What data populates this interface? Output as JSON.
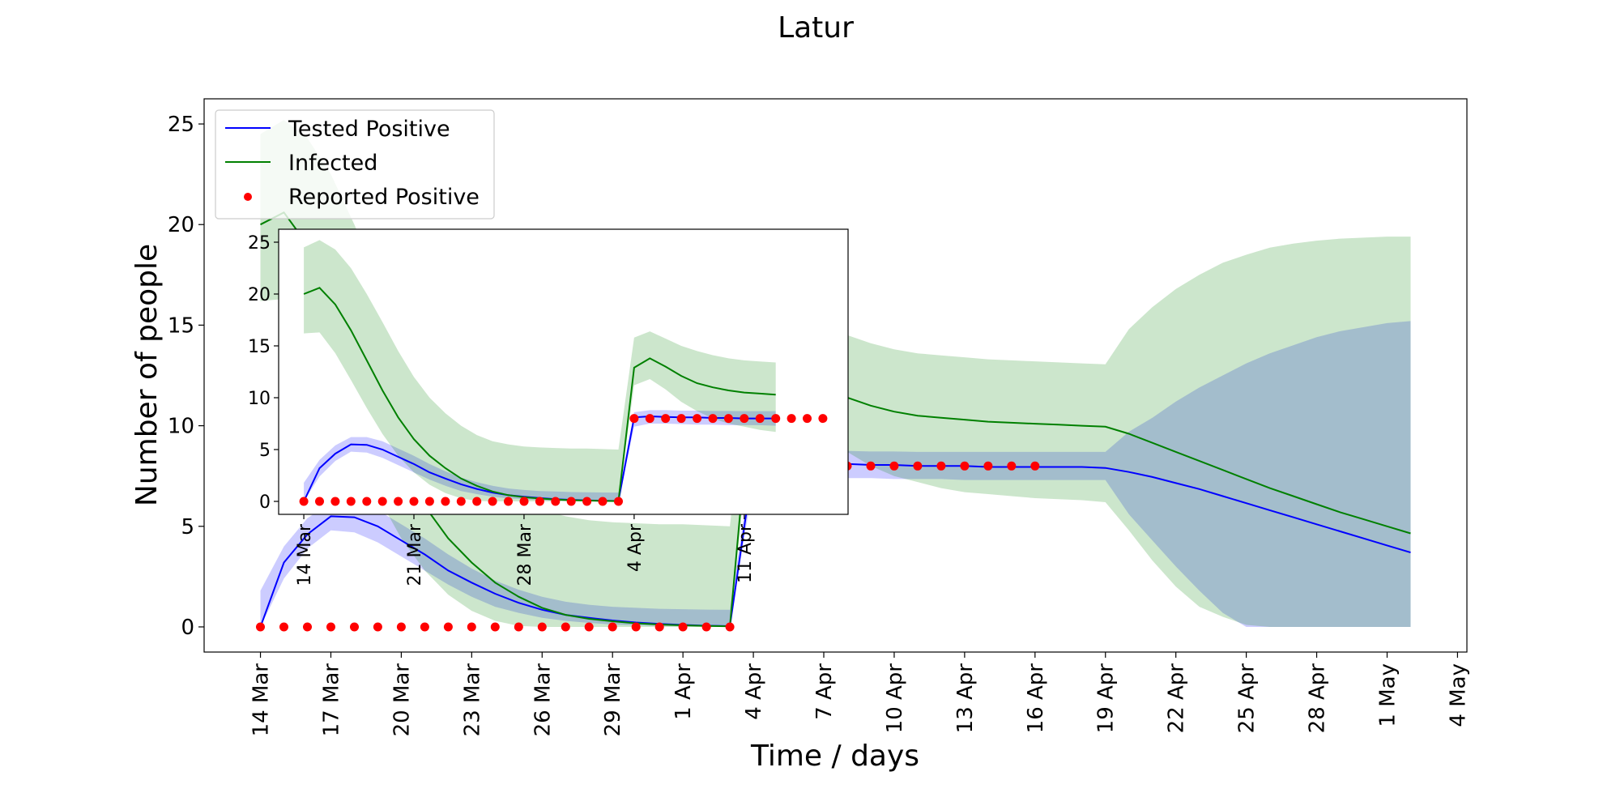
{
  "chart_data": {
    "type": "line",
    "title": "Latur",
    "xlabel": "Time / days",
    "ylabel": "Number of people",
    "x_start_date": "14 Mar",
    "x_tick_labels": [
      "14 Mar",
      "17 Mar",
      "20 Mar",
      "23 Mar",
      "26 Mar",
      "29 Mar",
      "1 Apr",
      "4 Apr",
      "7 Apr",
      "10 Apr",
      "13 Apr",
      "16 Apr",
      "19 Apr",
      "22 Apr",
      "25 Apr",
      "28 Apr",
      "1 May",
      "4 May"
    ],
    "y_ticks": [
      0,
      5,
      10,
      15,
      20,
      25
    ],
    "xlim": [
      -2.4,
      51.4
    ],
    "ylim": [
      -1.25,
      26.25
    ],
    "legend_position": "top-left",
    "grid": false,
    "legend": [
      {
        "label": "Tested Positive",
        "color": "#0000ff",
        "kind": "line"
      },
      {
        "label": "Infected",
        "color": "#008000",
        "kind": "line"
      },
      {
        "label": "Reported Positive",
        "color": "#ff0000",
        "kind": "dot"
      }
    ],
    "series": [
      {
        "name": "Tested Positive",
        "color": "#0000ff",
        "band_color": "#0000ff",
        "band_opacity": 0.2,
        "x": [
          0,
          1,
          2,
          3,
          4,
          5,
          6,
          7,
          8,
          9,
          10,
          11,
          12,
          13,
          14,
          15,
          16,
          17,
          18,
          19,
          20,
          21,
          22,
          23,
          24,
          25,
          26,
          27,
          28,
          29,
          30,
          31,
          32,
          33,
          34,
          35,
          36,
          37,
          38,
          39,
          40,
          41,
          42,
          43,
          44,
          45,
          46,
          47,
          48,
          49
        ],
        "y": [
          0,
          3.2,
          4.6,
          5.5,
          5.45,
          5.0,
          4.3,
          3.6,
          2.8,
          2.2,
          1.65,
          1.2,
          0.85,
          0.6,
          0.45,
          0.32,
          0.22,
          0.15,
          0.1,
          0.06,
          0.04,
          8.1,
          8.2,
          8.15,
          8.1,
          8.1,
          8.05,
          8.05,
          8.0,
          8.0,
          8.0,
          7.95,
          7.95,
          7.95,
          7.95,
          7.95,
          7.9,
          7.7,
          7.45,
          7.15,
          6.85,
          6.5,
          6.15,
          5.8,
          5.45,
          5.1,
          4.75,
          4.4,
          4.05,
          3.7
        ],
        "lower": [
          0,
          2.4,
          3.9,
          4.8,
          4.7,
          4.2,
          3.5,
          2.8,
          2.1,
          1.5,
          1.0,
          0.7,
          0.45,
          0.3,
          0.2,
          0.12,
          0.08,
          0.05,
          0.03,
          0.02,
          0.01,
          7.2,
          7.5,
          7.5,
          7.45,
          7.4,
          7.4,
          7.35,
          7.35,
          7.35,
          7.3,
          7.3,
          7.3,
          7.3,
          7.3,
          7.3,
          7.3,
          5.6,
          4.3,
          3.0,
          1.8,
          0.7,
          0,
          0,
          0,
          0,
          0,
          0,
          0,
          0
        ],
        "upper": [
          1.8,
          4.0,
          5.4,
          6.2,
          6.2,
          5.8,
          5.1,
          4.4,
          3.6,
          2.9,
          2.3,
          1.85,
          1.5,
          1.25,
          1.1,
          1.0,
          0.95,
          0.9,
          0.88,
          0.86,
          0.85,
          8.6,
          8.8,
          8.8,
          8.75,
          8.75,
          8.72,
          8.72,
          8.7,
          8.7,
          8.7,
          8.7,
          8.7,
          8.7,
          8.7,
          8.7,
          8.7,
          9.7,
          10.4,
          11.2,
          11.9,
          12.5,
          13.1,
          13.6,
          14.0,
          14.4,
          14.7,
          14.9,
          15.1,
          15.2
        ]
      },
      {
        "name": "Infected",
        "color": "#008000",
        "band_color": "#008000",
        "band_opacity": 0.2,
        "x": [
          0,
          1,
          2,
          3,
          4,
          5,
          6,
          7,
          8,
          9,
          10,
          11,
          12,
          13,
          14,
          15,
          16,
          17,
          18,
          19,
          20,
          21,
          22,
          23,
          24,
          25,
          26,
          27,
          28,
          29,
          30,
          31,
          32,
          33,
          34,
          35,
          36,
          37,
          38,
          39,
          40,
          41,
          42,
          43,
          44,
          45,
          46,
          47,
          48,
          49
        ],
        "y": [
          20,
          20.6,
          19,
          16.5,
          13.6,
          10.7,
          8.1,
          6.0,
          4.4,
          3.2,
          2.2,
          1.5,
          0.95,
          0.6,
          0.4,
          0.28,
          0.18,
          0.12,
          0.08,
          0.05,
          0.03,
          12.9,
          13.8,
          13.0,
          12.1,
          11.4,
          11.0,
          10.7,
          10.5,
          10.4,
          10.3,
          10.2,
          10.15,
          10.1,
          10.05,
          10.0,
          9.95,
          9.6,
          9.15,
          8.7,
          8.25,
          7.8,
          7.35,
          6.9,
          6.5,
          6.1,
          5.7,
          5.35,
          5.0,
          4.65
        ],
        "lower": [
          16.2,
          16.3,
          14.3,
          11.7,
          9.0,
          6.5,
          4.4,
          2.8,
          1.6,
          0.8,
          0.3,
          0.05,
          0,
          0,
          0,
          0,
          0,
          0,
          0,
          0,
          0,
          11.2,
          11.8,
          10.8,
          9.6,
          8.7,
          8.0,
          7.5,
          7.2,
          6.9,
          6.7,
          6.6,
          6.5,
          6.4,
          6.35,
          6.3,
          6.2,
          4.8,
          3.3,
          2.0,
          1.0,
          0.5,
          0.1,
          0,
          0,
          0,
          0,
          0,
          0,
          0
        ],
        "upper": [
          24.5,
          25.2,
          24.3,
          22.5,
          20.0,
          17.3,
          14.5,
          12.0,
          10.0,
          8.5,
          7.3,
          6.4,
          5.8,
          5.5,
          5.3,
          5.2,
          5.15,
          5.1,
          5.1,
          5.05,
          5.0,
          15.8,
          16.4,
          15.7,
          15.0,
          14.5,
          14.1,
          13.8,
          13.6,
          13.5,
          13.4,
          13.3,
          13.25,
          13.2,
          13.15,
          13.1,
          13.05,
          14.8,
          15.9,
          16.8,
          17.5,
          18.1,
          18.5,
          18.85,
          19.05,
          19.2,
          19.3,
          19.35,
          19.4,
          19.4
        ]
      },
      {
        "name": "Reported Positive",
        "color": "#ff0000",
        "kind": "scatter",
        "x": [
          0,
          1,
          2,
          3,
          4,
          5,
          6,
          7,
          8,
          9,
          10,
          11,
          12,
          13,
          14,
          15,
          16,
          17,
          18,
          19,
          20,
          21,
          22,
          23,
          24,
          25,
          26,
          27,
          28,
          29,
          30,
          31,
          32,
          33
        ],
        "y": [
          0,
          0,
          0,
          0,
          0,
          0,
          0,
          0,
          0,
          0,
          0,
          0,
          0,
          0,
          0,
          0,
          0,
          0,
          0,
          0,
          0,
          8,
          8,
          8,
          8,
          8,
          8,
          8,
          8,
          8,
          8,
          8,
          8,
          8
        ]
      }
    ],
    "inset": {
      "x_tick_labels": [
        "14 Mar",
        "21 Mar",
        "28 Mar",
        "4 Apr",
        "11 Apr"
      ],
      "x_tick_values": [
        0,
        7,
        14,
        21,
        28
      ],
      "y_ticks": [
        0,
        5,
        10,
        15,
        20,
        25
      ],
      "xlim": [
        -1.6,
        34.6
      ],
      "ylim": [
        -1.25,
        26.25
      ],
      "x_max": 30
    }
  }
}
